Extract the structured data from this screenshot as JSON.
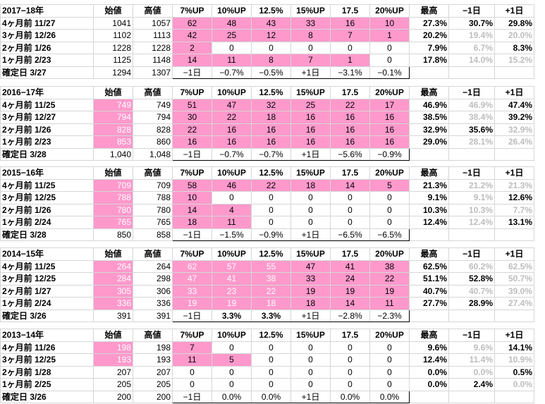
{
  "headers": [
    "始値",
    "高値",
    "7%UP",
    "10%UP",
    "12.5%",
    "15%UP",
    "17.5",
    "20%UP",
    "最高",
    "−1日",
    "+1日"
  ],
  "blocks": [
    {
      "title": "2017−18年",
      "rows": [
        {
          "label": "4ヶ月前  11/27",
          "open": "1041",
          "high": "1057",
          "open_pink": false,
          "cells": [
            "62",
            "48",
            "43",
            "33",
            "16",
            "10"
          ],
          "pinkN": 6,
          "best": "27.3%",
          "m1": "30.7%",
          "p1": "29.8%",
          "m1g": false,
          "p1g": false
        },
        {
          "label": "3ヶ月前  12/26",
          "open": "1102",
          "high": "1113",
          "open_pink": false,
          "cells": [
            "42",
            "25",
            "12",
            "8",
            "7",
            "1"
          ],
          "pinkN": 6,
          "best": "20.2%",
          "m1": "19.4%",
          "p1": "20.0%",
          "m1g": true,
          "p1g": true
        },
        {
          "label": "2ヶ月前   1/26",
          "open": "1228",
          "high": "1228",
          "open_pink": false,
          "cells": [
            "2",
            "0",
            "0",
            "0",
            "0",
            "0"
          ],
          "pinkN": 1,
          "best": "7.9%",
          "m1": "6.7%",
          "p1": "8.3%",
          "m1g": true,
          "p1g": false
        },
        {
          "label": "1ヶ月前   2/23",
          "open": "1125",
          "high": "1148",
          "open_pink": false,
          "cells": [
            "14",
            "11",
            "8",
            "7",
            "1",
            "0"
          ],
          "pinkN": 5,
          "best": "17.8%",
          "m1": "14.0%",
          "p1": "15.2%",
          "m1g": true,
          "p1g": true
        }
      ],
      "confirm": {
        "label": "確定日   3/27",
        "open": "1294",
        "high": "1307",
        "cells": [
          "−1日",
          "−0.7%",
          "−0.5%",
          "+1日",
          "−3.1%",
          "−0.1%"
        ],
        "bold": [
          false,
          false,
          false,
          false,
          false,
          false
        ]
      }
    },
    {
      "title": "2016−17年",
      "rows": [
        {
          "label": "4ヶ月前  11/25",
          "open": "749",
          "high": "749",
          "open_pink": true,
          "cells": [
            "51",
            "47",
            "32",
            "25",
            "22",
            "17"
          ],
          "pinkN": 6,
          "best": "46.9%",
          "m1": "46.9%",
          "p1": "47.4%",
          "m1g": true,
          "p1g": false
        },
        {
          "label": "3ヶ月前  12/27",
          "open": "794",
          "high": "794",
          "open_pink": true,
          "cells": [
            "30",
            "22",
            "18",
            "16",
            "16",
            "16"
          ],
          "pinkN": 6,
          "best": "38.5%",
          "m1": "38.4%",
          "p1": "39.2%",
          "m1g": true,
          "p1g": false
        },
        {
          "label": "2ヶ月前   1/26",
          "open": "828",
          "high": "828",
          "open_pink": true,
          "cells": [
            "22",
            "16",
            "16",
            "16",
            "16",
            "16"
          ],
          "pinkN": 6,
          "best": "32.9%",
          "m1": "35.6%",
          "p1": "32.9%",
          "m1g": false,
          "p1g": true
        },
        {
          "label": "1ヶ月前   2/23",
          "open": "853",
          "high": "860",
          "open_pink": true,
          "cells": [
            "16",
            "16",
            "16",
            "16",
            "16",
            "16"
          ],
          "pinkN": 6,
          "best": "29.0%",
          "m1": "28.1%",
          "p1": "26.4%",
          "m1g": true,
          "p1g": true
        }
      ],
      "confirm": {
        "label": "確定日   3/28",
        "open": "1,040",
        "high": "1,048",
        "cells": [
          "−1日",
          "−0.7%",
          "−0.7%",
          "+1日",
          "−5.6%",
          "−0.9%"
        ],
        "bold": [
          false,
          false,
          false,
          false,
          false,
          false
        ]
      }
    },
    {
      "title": "2015−16年",
      "rows": [
        {
          "label": "4ヶ月前  11/25",
          "open": "709",
          "high": "709",
          "open_pink": true,
          "cells": [
            "58",
            "46",
            "22",
            "18",
            "14",
            "5"
          ],
          "pinkN": 6,
          "best": "21.3%",
          "m1": "21.2%",
          "p1": "21.3%",
          "m1g": true,
          "p1g": true
        },
        {
          "label": "3ヶ月前  12/25",
          "open": "788",
          "high": "788",
          "open_pink": true,
          "cells": [
            "10",
            "0",
            "0",
            "0",
            "0",
            "0"
          ],
          "pinkN": 1,
          "best": "9.1%",
          "m1": "9.1%",
          "p1": "12.6%",
          "m1g": true,
          "p1g": false
        },
        {
          "label": "2ヶ月前   1/26",
          "open": "780",
          "high": "780",
          "open_pink": true,
          "cells": [
            "14",
            "4",
            "0",
            "0",
            "0",
            "0"
          ],
          "pinkN": 2,
          "best": "10.3%",
          "m1": "10.3%",
          "p1": "7.7%",
          "m1g": true,
          "p1g": true
        },
        {
          "label": "1ヶ月前   2/24",
          "open": "765",
          "high": "765",
          "open_pink": true,
          "cells": [
            "18",
            "11",
            "0",
            "0",
            "0",
            "0"
          ],
          "pinkN": 2,
          "best": "12.4%",
          "m1": "12.4%",
          "p1": "13.1%",
          "m1g": true,
          "p1g": false
        }
      ],
      "confirm": {
        "label": "確定日   3/28",
        "open": "850",
        "high": "858",
        "cells": [
          "−1日",
          "−1.5%",
          "−0.9%",
          "+1日",
          "−6.5%",
          "−6.5%"
        ],
        "bold": [
          false,
          false,
          false,
          false,
          false,
          false
        ]
      }
    },
    {
      "title": "2014−15年",
      "rows": [
        {
          "label": "4ヶ月前  11/25",
          "open": "264",
          "high": "264",
          "open_pink": true,
          "cells": [
            "62",
            "57",
            "55",
            "47",
            "41",
            "38"
          ],
          "pinkN": 6,
          "best": "62.5%",
          "m1": "60.2%",
          "p1": "62.5%",
          "m1g": true,
          "p1g": true
        },
        {
          "label": "3ヶ月前  12/25",
          "open": "284",
          "high": "298",
          "open_pink": true,
          "cells": [
            "47",
            "41",
            "38",
            "33",
            "24",
            "22"
          ],
          "pinkN": 6,
          "best": "51.1%",
          "m1": "52.8%",
          "p1": "50.7%",
          "m1g": false,
          "p1g": true
        },
        {
          "label": "2ヶ月前   1/27",
          "open": "305",
          "high": "306",
          "open_pink": true,
          "cells": [
            "33",
            "23",
            "22",
            "19",
            "19",
            "19"
          ],
          "pinkN": 6,
          "best": "40.7%",
          "m1": "40.7%",
          "p1": "39.0%",
          "m1g": true,
          "p1g": true
        },
        {
          "label": "1ヶ月前   2/24",
          "open": "336",
          "high": "336",
          "open_pink": true,
          "cells": [
            "19",
            "19",
            "18",
            "18",
            "14",
            "11"
          ],
          "pinkN": 6,
          "best": "27.7%",
          "m1": "28.9%",
          "p1": "27.4%",
          "m1g": false,
          "p1g": true
        }
      ],
      "confirm": {
        "label": "確定日   3/26",
        "open": "391",
        "high": "391",
        "cells": [
          "−1日",
          "3.3%",
          "3.3%",
          "+1日",
          "−2.8%",
          "−2.3%"
        ],
        "bold": [
          false,
          true,
          true,
          false,
          false,
          false
        ]
      }
    },
    {
      "title": "2013−14年",
      "rows": [
        {
          "label": "4ヶ月前  11/26",
          "open": "198",
          "high": "198",
          "open_pink": true,
          "cells": [
            "7",
            "0",
            "0",
            "0",
            "0",
            "0"
          ],
          "pinkN": 1,
          "best": "9.6%",
          "m1": "9.6%",
          "p1": "14.1%",
          "m1g": true,
          "p1g": false
        },
        {
          "label": "3ヶ月前  12/25",
          "open": "193",
          "high": "193",
          "open_pink": true,
          "cells": [
            "11",
            "5",
            "0",
            "0",
            "0",
            "0"
          ],
          "pinkN": 2,
          "best": "12.4%",
          "m1": "11.4%",
          "p1": "10.9%",
          "m1g": true,
          "p1g": true
        },
        {
          "label": "2ヶ月前   1/28",
          "open": "207",
          "high": "207",
          "open_pink": false,
          "cells": [
            "0",
            "0",
            "0",
            "0",
            "0",
            "0"
          ],
          "pinkN": 0,
          "best": "0.0%",
          "m1": "0.0%",
          "p1": "0.5%",
          "m1g": true,
          "p1g": false
        },
        {
          "label": "1ヶ月前   2/25",
          "open": "205",
          "high": "205",
          "open_pink": false,
          "cells": [
            "0",
            "0",
            "0",
            "0",
            "0",
            "0"
          ],
          "pinkN": 0,
          "best": "0.0%",
          "m1": "2.4%",
          "p1": "0.0%",
          "m1g": false,
          "p1g": true
        }
      ],
      "confirm": {
        "label": "確定日   3/26",
        "open": "200",
        "high": "200",
        "cells": [
          "−1日",
          "0.0%",
          "0.0%",
          "+1日",
          "0.0%",
          "0.0%"
        ],
        "bold": [
          false,
          false,
          false,
          false,
          false,
          false
        ]
      }
    }
  ]
}
